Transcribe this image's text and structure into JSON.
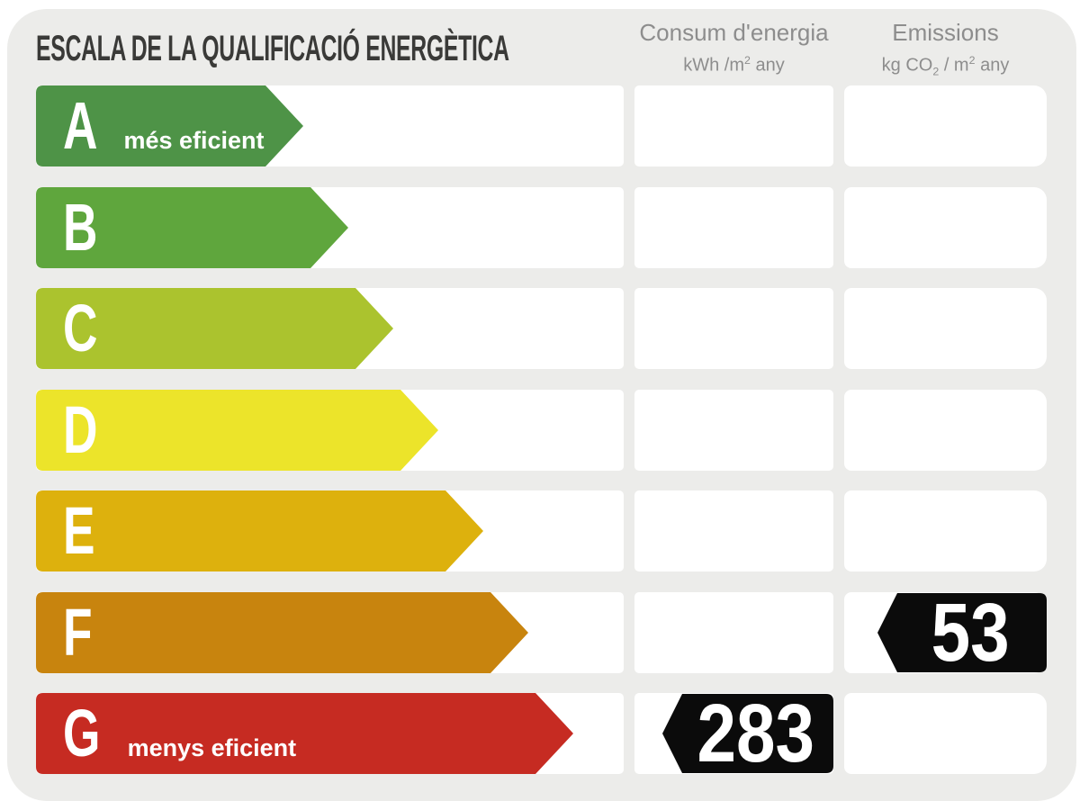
{
  "title": "ESCALA DE LA QUALIFICACIÓ ENERGÈTICA",
  "columns": {
    "consum": {
      "title": "Consum d'energia",
      "unit": {
        "base": "kWh /m",
        "sup": "2",
        "tail": " any"
      }
    },
    "emissions": {
      "title": "Emissions",
      "unit": {
        "p1": "kg CO",
        "sub": "2",
        "p2": " / m",
        "sup": "2",
        "p3": " any"
      }
    }
  },
  "scale": {
    "ratings": [
      {
        "letter": "A",
        "sublabel": "més eficient",
        "color": "#4e9347",
        "arrow_length": 297
      },
      {
        "letter": "B",
        "sublabel": "",
        "color": "#5fa63d",
        "arrow_length": 347
      },
      {
        "letter": "C",
        "sublabel": "",
        "color": "#abc32e",
        "arrow_length": 397
      },
      {
        "letter": "D",
        "sublabel": "",
        "color": "#ece42a",
        "arrow_length": 447
      },
      {
        "letter": "E",
        "sublabel": "",
        "color": "#ddb10d",
        "arrow_length": 497
      },
      {
        "letter": "F",
        "sublabel": "",
        "color": "#c8840e",
        "arrow_length": 547
      },
      {
        "letter": "G",
        "sublabel": "menys eficient",
        "color": "#c62b22",
        "arrow_length": 597
      }
    ]
  },
  "values": [
    {
      "column": "consum",
      "row": "G",
      "value": "283",
      "color": "#0b0b0b",
      "text_color": "#ffffff"
    },
    {
      "column": "emissions",
      "row": "F",
      "value": "53",
      "color": "#0b0b0b",
      "text_color": "#ffffff"
    }
  ],
  "colors": {
    "page_bg": "#ffffff",
    "card_bg": "#ececea",
    "cell_bg": "#ffffff",
    "title_text": "#3a3a38",
    "header_text": "#8d8d8d",
    "arrow_text": "#ffffff"
  },
  "chart_data": {
    "type": "bar",
    "orientation": "horizontal",
    "title": "ESCALA DE LA QUALIFICACIÓ ENERGÈTICA",
    "categories": [
      "A",
      "B",
      "C",
      "D",
      "E",
      "F",
      "G"
    ],
    "series": [
      {
        "name": "Consum d'energia (kWh/m2 any)",
        "rating": "G",
        "value": 283
      },
      {
        "name": "Emissions (kg CO2/m2 any)",
        "rating": "F",
        "value": 53
      }
    ],
    "annotations": [
      {
        "category": "A",
        "label": "més eficient"
      },
      {
        "category": "G",
        "label": "menys eficient"
      }
    ],
    "legend_position": "none",
    "grid": false
  }
}
